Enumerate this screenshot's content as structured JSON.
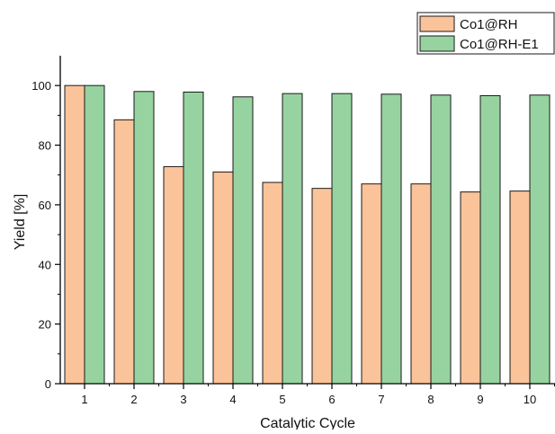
{
  "chart_data": {
    "type": "bar",
    "title": "",
    "xlabel": "Catalytic Cycle",
    "ylabel": "Yield [%]",
    "ylim": [
      0,
      110
    ],
    "y_ticks": [
      0,
      20,
      40,
      60,
      80,
      100
    ],
    "grid": false,
    "legend_position": "top-right",
    "categories": [
      "1",
      "2",
      "3",
      "4",
      "5",
      "6",
      "7",
      "8",
      "9",
      "10"
    ],
    "series": [
      {
        "name": "Co1@RH",
        "color": "#fbc39a",
        "values": [
          100,
          88.5,
          72.8,
          71.0,
          67.5,
          65.5,
          67.0,
          67.0,
          64.3,
          64.6
        ]
      },
      {
        "name": "Co1@RH-E1",
        "color": "#97d3a0",
        "values": [
          100,
          98.0,
          97.8,
          96.2,
          97.3,
          97.3,
          97.1,
          96.8,
          96.6,
          96.8
        ]
      }
    ]
  }
}
